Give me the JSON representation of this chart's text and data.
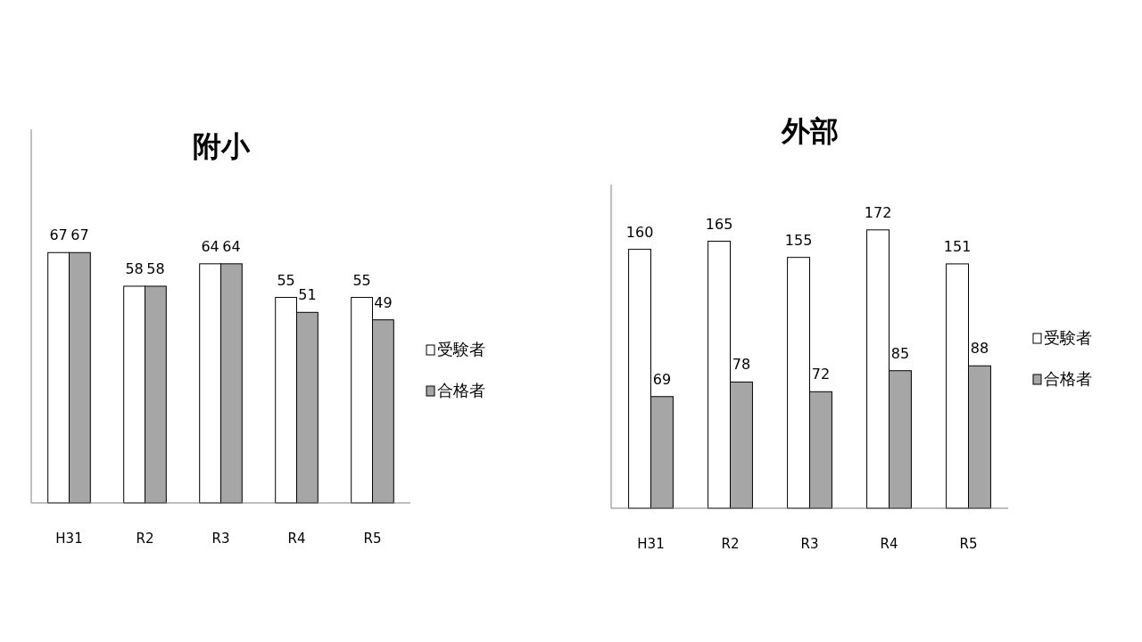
{
  "chart_data": [
    {
      "type": "bar",
      "title": "附小",
      "categories": [
        "H31",
        "R2",
        "R3",
        "R4",
        "R5"
      ],
      "series": [
        {
          "name": "受験者",
          "color": "#ffffff",
          "values": [
            67,
            58,
            64,
            55,
            55
          ]
        },
        {
          "name": "合格者",
          "color": "#a6a6a6",
          "values": [
            67,
            58,
            64,
            51,
            49
          ]
        }
      ],
      "ylim": [
        0,
        100
      ],
      "data_labels": true,
      "legend": "right",
      "grid": false,
      "tick_labels": "x"
    },
    {
      "type": "bar",
      "title": "外部",
      "categories": [
        "H31",
        "R2",
        "R3",
        "R4",
        "R5"
      ],
      "series": [
        {
          "name": "受験者",
          "color": "#ffffff",
          "values": [
            160,
            165,
            155,
            172,
            151
          ]
        },
        {
          "name": "合格者",
          "color": "#a6a6a6",
          "values": [
            69,
            78,
            72,
            85,
            88
          ]
        }
      ],
      "ylim": [
        0,
        200
      ],
      "data_labels": true,
      "legend": "right",
      "grid": false,
      "tick_labels": "x"
    }
  ]
}
